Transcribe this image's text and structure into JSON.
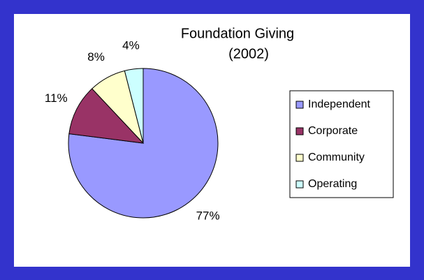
{
  "chart_data": {
    "type": "pie",
    "title": "Foundation Giving",
    "subtitle": "(2002)",
    "categories": [
      "Independent",
      "Corporate",
      "Community",
      "Operating"
    ],
    "values": [
      77,
      11,
      8,
      4
    ],
    "value_labels": [
      "77%",
      "11%",
      "8%",
      "4%"
    ],
    "colors": [
      "#9999ff",
      "#993366",
      "#ffffcc",
      "#ccffff"
    ],
    "legend": "right"
  }
}
